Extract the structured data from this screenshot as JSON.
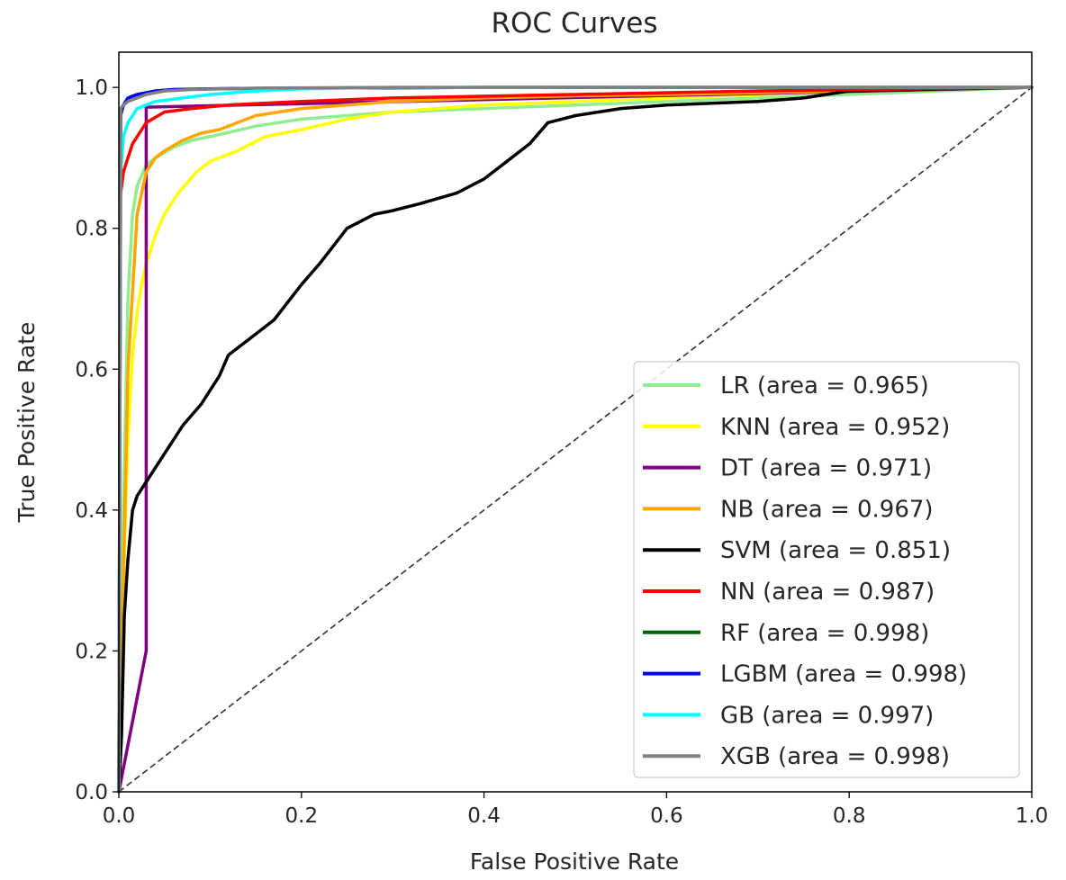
{
  "chart_data": {
    "type": "line",
    "title": "ROC Curves",
    "xlabel": "False Positive Rate",
    "ylabel": "True Positive Rate",
    "xlim": [
      0.0,
      1.0
    ],
    "ylim": [
      0.0,
      1.05
    ],
    "xticks": [
      "0.0",
      "0.2",
      "0.4",
      "0.6",
      "0.8",
      "1.0"
    ],
    "yticks": [
      "0.0",
      "0.2",
      "0.4",
      "0.6",
      "0.8",
      "1.0"
    ],
    "grid": false,
    "legend_position": "lower-right",
    "chance_line": {
      "x": [
        0,
        1
      ],
      "y": [
        0,
        1
      ],
      "color": "#333333",
      "style": "dashed"
    },
    "series": [
      {
        "name": "LR (area = 0.965)",
        "color": "#90ee90",
        "x": [
          0,
          0.005,
          0.01,
          0.015,
          0.02,
          0.03,
          0.04,
          0.06,
          0.08,
          0.1,
          0.15,
          0.2,
          0.3,
          0.4,
          0.5,
          0.6,
          0.7,
          0.8,
          0.9,
          1.0
        ],
        "y": [
          0,
          0.4,
          0.7,
          0.82,
          0.86,
          0.89,
          0.9,
          0.915,
          0.925,
          0.93,
          0.945,
          0.955,
          0.965,
          0.97,
          0.975,
          0.98,
          0.985,
          0.99,
          0.995,
          1.0
        ]
      },
      {
        "name": "KNN (area = 0.952)",
        "color": "#ffff00",
        "x": [
          0,
          0.005,
          0.01,
          0.015,
          0.02,
          0.025,
          0.03,
          0.04,
          0.05,
          0.065,
          0.085,
          0.1,
          0.13,
          0.16,
          0.2,
          0.25,
          0.3,
          0.4,
          0.5,
          0.6,
          0.7,
          0.8,
          0.9,
          1.0
        ],
        "y": [
          0,
          0.3,
          0.5,
          0.62,
          0.68,
          0.72,
          0.75,
          0.79,
          0.82,
          0.85,
          0.88,
          0.895,
          0.91,
          0.93,
          0.94,
          0.955,
          0.965,
          0.975,
          0.98,
          0.985,
          0.99,
          0.995,
          0.998,
          1.0
        ]
      },
      {
        "name": "DT (area = 0.971)",
        "color": "#800080",
        "x": [
          0,
          0.03,
          0.03,
          1.0
        ],
        "y": [
          0,
          0.2,
          0.972,
          1.0
        ]
      },
      {
        "name": "NB (area = 0.967)",
        "color": "#ffa500",
        "x": [
          0,
          0.005,
          0.01,
          0.02,
          0.03,
          0.04,
          0.05,
          0.07,
          0.09,
          0.11,
          0.13,
          0.15,
          0.2,
          0.25,
          0.3,
          0.4,
          0.5,
          0.6,
          0.8,
          1.0
        ],
        "y": [
          0,
          0.3,
          0.6,
          0.82,
          0.88,
          0.9,
          0.91,
          0.925,
          0.935,
          0.94,
          0.95,
          0.96,
          0.97,
          0.975,
          0.98,
          0.985,
          0.988,
          0.99,
          0.995,
          1.0
        ]
      },
      {
        "name": "SVM (area = 0.851)",
        "color": "#000000",
        "x": [
          0,
          0.003,
          0.006,
          0.01,
          0.015,
          0.02,
          0.03,
          0.05,
          0.07,
          0.09,
          0.11,
          0.12,
          0.14,
          0.17,
          0.2,
          0.22,
          0.25,
          0.28,
          0.3,
          0.33,
          0.37,
          0.4,
          0.42,
          0.45,
          0.47,
          0.5,
          0.55,
          0.6,
          0.7,
          0.75,
          0.8,
          1.0
        ],
        "y": [
          0,
          0.08,
          0.25,
          0.33,
          0.4,
          0.42,
          0.44,
          0.48,
          0.52,
          0.55,
          0.59,
          0.62,
          0.64,
          0.67,
          0.72,
          0.75,
          0.8,
          0.82,
          0.825,
          0.835,
          0.85,
          0.87,
          0.89,
          0.92,
          0.95,
          0.96,
          0.97,
          0.975,
          0.98,
          0.985,
          0.995,
          1.0
        ]
      },
      {
        "name": "NN (area = 0.987)",
        "color": "#ff0000",
        "x": [
          0,
          0.002,
          0.005,
          0.01,
          0.015,
          0.02,
          0.03,
          0.05,
          0.08,
          0.12,
          0.2,
          0.3,
          0.5,
          0.7,
          1.0
        ],
        "y": [
          0,
          0.85,
          0.88,
          0.9,
          0.92,
          0.93,
          0.95,
          0.965,
          0.97,
          0.975,
          0.98,
          0.985,
          0.99,
          0.995,
          1.0
        ]
      },
      {
        "name": "RF (area = 0.998)",
        "color": "#006400",
        "x": [
          0,
          0.002,
          0.005,
          0.01,
          0.02,
          0.04,
          0.06,
          0.1,
          0.2,
          0.4,
          0.6,
          0.8,
          1.0
        ],
        "y": [
          0,
          0.96,
          0.975,
          0.985,
          0.99,
          0.995,
          0.997,
          0.998,
          0.999,
          1.0,
          1.0,
          1.0,
          1.0
        ]
      },
      {
        "name": "LGBM (area = 0.998)",
        "color": "#0000ff",
        "x": [
          0,
          0.002,
          0.005,
          0.01,
          0.02,
          0.04,
          0.06,
          0.1,
          0.2,
          0.4,
          0.6,
          0.8,
          1.0
        ],
        "y": [
          0,
          0.965,
          0.975,
          0.985,
          0.99,
          0.995,
          0.997,
          0.998,
          0.999,
          1.0,
          1.0,
          1.0,
          1.0
        ]
      },
      {
        "name": "GB (area = 0.997)",
        "color": "#00ffff",
        "x": [
          0,
          0.002,
          0.005,
          0.01,
          0.02,
          0.04,
          0.07,
          0.1,
          0.15,
          0.2,
          0.3,
          0.5,
          1.0
        ],
        "y": [
          0,
          0.88,
          0.93,
          0.95,
          0.97,
          0.98,
          0.985,
          0.99,
          0.995,
          0.998,
          1.0,
          1.0,
          1.0
        ]
      },
      {
        "name": "XGB (area = 0.998)",
        "color": "#808080",
        "x": [
          0,
          0.002,
          0.005,
          0.01,
          0.02,
          0.03,
          0.05,
          0.08,
          0.15,
          0.3,
          0.5,
          1.0
        ],
        "y": [
          0,
          0.97,
          0.975,
          0.98,
          0.985,
          0.99,
          0.995,
          0.997,
          0.999,
          1.0,
          1.0,
          1.0
        ]
      }
    ]
  }
}
